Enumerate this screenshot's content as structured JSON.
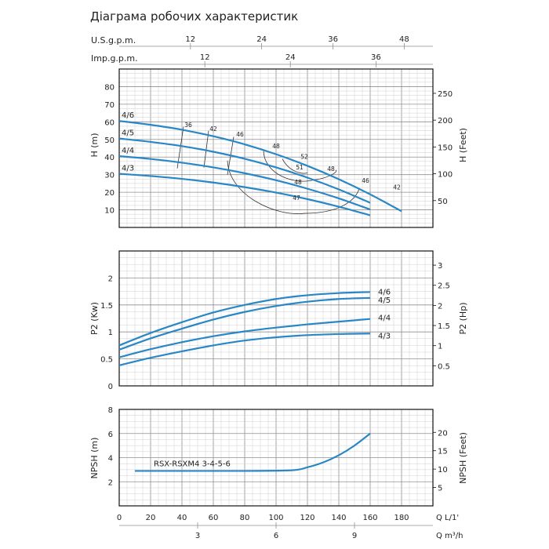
{
  "page": {
    "title": "Діаграма робочих характеристик"
  },
  "colors": {
    "curve": "#2a87c6",
    "grid_minor": "#cfcfcf",
    "grid_major": "#8f8f8f",
    "frame": "#111111",
    "iso": "#333333"
  },
  "chart_data": [
    {
      "type": "line",
      "name": "head",
      "top_axes": [
        {
          "label": "U.S.g.p.m.",
          "ticks": [
            "12",
            "24",
            "36",
            "48"
          ],
          "tick_flow_lmin": [
            45.4,
            90.8,
            136.3,
            181.7
          ]
        },
        {
          "label": "Imp.g.p.m.",
          "ticks": [
            "12",
            "24",
            "36"
          ],
          "tick_flow_lmin": [
            54.6,
            109.1,
            163.7
          ]
        }
      ],
      "xlim": [
        0,
        200
      ],
      "ylim": [
        0,
        90
      ],
      "ylabel": "H (m)",
      "yticks": [
        10,
        20,
        30,
        40,
        50,
        60,
        70,
        80
      ],
      "ylabel_right": "H (Feet)",
      "yticks_right": [
        50,
        100,
        150,
        200,
        250
      ],
      "grid": true,
      "series": [
        {
          "name": "4/6",
          "x": [
            0,
            20,
            40,
            60,
            80,
            100,
            120,
            140,
            160,
            180
          ],
          "y": [
            60.5,
            58.3,
            55.5,
            51.8,
            47.2,
            41.6,
            35.0,
            27.4,
            18.8,
            9.2
          ]
        },
        {
          "name": "4/5",
          "x": [
            0,
            20,
            40,
            60,
            80,
            100,
            120,
            140,
            160
          ],
          "y": [
            50.5,
            48.6,
            46.2,
            43.0,
            39.0,
            34.1,
            28.3,
            21.6,
            14.0
          ]
        },
        {
          "name": "4/4",
          "x": [
            0,
            20,
            40,
            60,
            80,
            100,
            120,
            140,
            160
          ],
          "y": [
            40.5,
            38.9,
            36.8,
            34.1,
            30.8,
            26.8,
            22.0,
            16.5,
            10.2
          ]
        },
        {
          "name": "4/3",
          "x": [
            0,
            20,
            40,
            60,
            80,
            100,
            120,
            140,
            160
          ],
          "y": [
            30.5,
            29.2,
            27.6,
            25.5,
            22.9,
            19.8,
            16.1,
            11.8,
            6.9
          ]
        }
      ],
      "efficiency_labels": [
        {
          "text": "36",
          "x": 44,
          "y": 57.0
        },
        {
          "text": "42",
          "x": 60,
          "y": 54.8
        },
        {
          "text": "46",
          "x": 77,
          "y": 51.7
        },
        {
          "text": "48",
          "x": 100,
          "y": 45.0
        },
        {
          "text": "52",
          "x": 118,
          "y": 39.0
        },
        {
          "text": "51",
          "x": 115,
          "y": 33.0
        },
        {
          "text": "48",
          "x": 135,
          "y": 32.0
        },
        {
          "text": "48",
          "x": 114,
          "y": 24.5
        },
        {
          "text": "46",
          "x": 157,
          "y": 25.5
        },
        {
          "text": "42",
          "x": 177,
          "y": 21.5
        },
        {
          "text": "47",
          "x": 113,
          "y": 15.5
        }
      ]
    },
    {
      "type": "line",
      "name": "power",
      "xlim": [
        0,
        200
      ],
      "ylim": [
        0,
        2.5
      ],
      "ylabel": "P2 (Kw)",
      "yticks": [
        0,
        0.5,
        1,
        1.5,
        2
      ],
      "ytick_labels": [
        "0",
        "0.5",
        "1",
        "1.5",
        "2"
      ],
      "ylabel_right": "P2 (Hp)",
      "yticks_right": [
        0.5,
        1,
        1.5,
        2,
        2.5,
        3
      ],
      "grid": true,
      "series": [
        {
          "name": "4/6",
          "x": [
            0,
            20,
            40,
            60,
            80,
            100,
            120,
            140,
            160
          ],
          "y": [
            0.75,
            0.98,
            1.18,
            1.36,
            1.5,
            1.61,
            1.68,
            1.72,
            1.74
          ]
        },
        {
          "name": "4/5",
          "x": [
            0,
            20,
            40,
            60,
            80,
            100,
            120,
            140,
            160
          ],
          "y": [
            0.67,
            0.88,
            1.06,
            1.23,
            1.37,
            1.48,
            1.56,
            1.61,
            1.63
          ]
        },
        {
          "name": "4/4",
          "x": [
            0,
            20,
            40,
            60,
            80,
            100,
            120,
            140,
            160
          ],
          "y": [
            0.53,
            0.68,
            0.81,
            0.92,
            1.01,
            1.08,
            1.14,
            1.19,
            1.24
          ]
        },
        {
          "name": "4/3",
          "x": [
            0,
            20,
            40,
            60,
            80,
            100,
            120,
            140,
            160
          ],
          "y": [
            0.38,
            0.52,
            0.64,
            0.75,
            0.84,
            0.9,
            0.94,
            0.96,
            0.97
          ]
        }
      ]
    },
    {
      "type": "line",
      "name": "npsh",
      "xlim": [
        0,
        200
      ],
      "ylim": [
        0,
        8
      ],
      "ylabel": "NPSH (m)",
      "yticks": [
        2,
        4,
        6,
        8
      ],
      "ylabel_right": "NPSH (Feet)",
      "yticks_right": [
        5,
        10,
        15,
        20
      ],
      "xticks": [
        20,
        40,
        60,
        80,
        100,
        120,
        140,
        160,
        180
      ],
      "xticks_label_zero": "0",
      "xlabel": "Q L/1'",
      "x2label": "Q m³/h",
      "x2ticks": [
        "3",
        "6",
        "9"
      ],
      "x2tick_flow_lmin": [
        50,
        100,
        150
      ],
      "grid": true,
      "series": [
        {
          "name": "RSX-RSXM4 3-4-5-6",
          "x": [
            10,
            40,
            80,
            110,
            120,
            130,
            140,
            150,
            160
          ],
          "y": [
            2.9,
            2.9,
            2.9,
            2.95,
            3.2,
            3.6,
            4.2,
            5.0,
            6.0
          ]
        }
      ]
    }
  ]
}
